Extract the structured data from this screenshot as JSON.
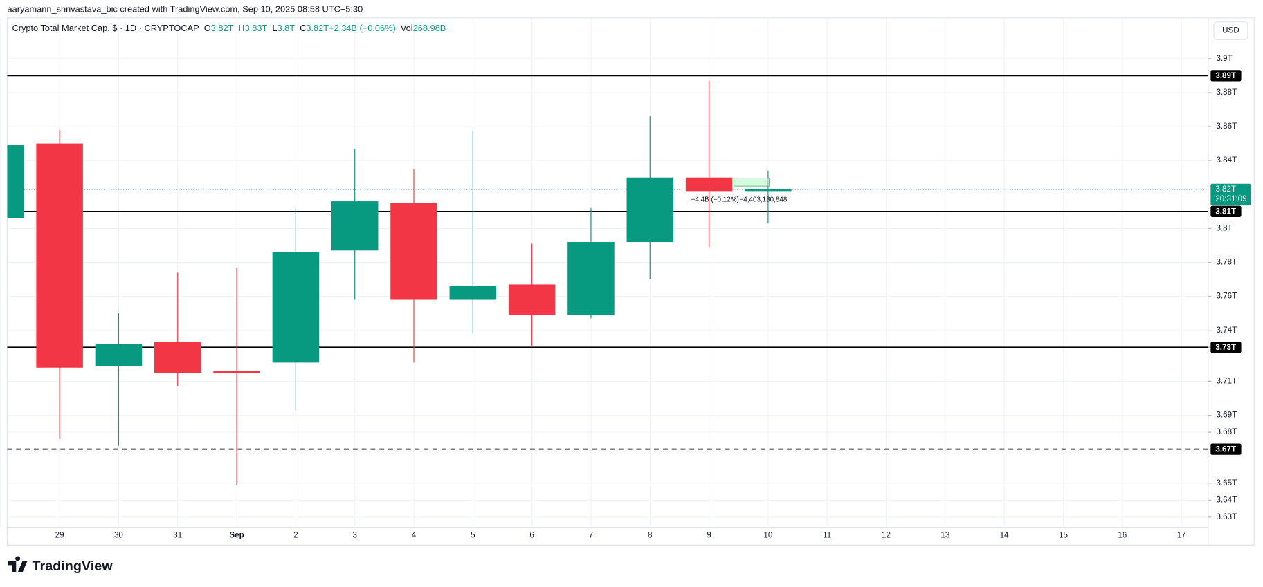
{
  "byline": "aaryamann_shrivastava_bic created with TradingView.com, Sep 10, 2025 08:58 UTC+5:30",
  "brand": "TradingView",
  "currency_button": "USD",
  "chart_data": {
    "type": "candlestick",
    "header": {
      "symbol": "Crypto Total Market Cap, $ · 1D · CRYPTOCAP",
      "items": [
        {
          "key": "O",
          "value": "3.82T"
        },
        {
          "key": "H",
          "value": "3.83T"
        },
        {
          "key": "L",
          "value": "3.8T"
        },
        {
          "key": "C",
          "value": "3.82T"
        },
        {
          "key": "",
          "value": "+2.34B (+0.06%)"
        },
        {
          "key": "Vol",
          "value": "268.98B"
        }
      ]
    },
    "categories": [
      null,
      "29",
      "30",
      "31",
      "Sep",
      "2",
      "3",
      "4",
      "5",
      "6",
      "7",
      "8",
      "9",
      "10",
      "11",
      "12",
      "13",
      "14",
      "15",
      "16",
      "17"
    ],
    "open": [
      3.806,
      3.85,
      3.719,
      3.733,
      3.716,
      3.721,
      3.787,
      3.815,
      3.758,
      3.767,
      3.749,
      3.792,
      3.83,
      3.822,
      null,
      null,
      null,
      null,
      null,
      null,
      null
    ],
    "high": [
      3.849,
      3.858,
      3.75,
      3.774,
      3.777,
      3.812,
      3.847,
      3.835,
      3.857,
      3.791,
      3.812,
      3.866,
      3.887,
      3.834,
      null,
      null,
      null,
      null,
      null,
      null,
      null
    ],
    "low": [
      3.806,
      3.676,
      3.672,
      3.707,
      3.649,
      3.693,
      3.758,
      3.721,
      3.738,
      3.731,
      3.747,
      3.77,
      3.789,
      3.803,
      null,
      null,
      null,
      null,
      null,
      null,
      null
    ],
    "close": [
      3.849,
      3.718,
      3.732,
      3.715,
      3.715,
      3.786,
      3.816,
      3.758,
      3.766,
      3.749,
      3.792,
      3.83,
      3.822,
      3.823,
      null,
      null,
      null,
      null,
      null,
      null,
      null
    ],
    "up_color": "#089981",
    "down_color": "#f23645",
    "ylim": [
      3.624,
      3.924
    ],
    "yticks": [
      {
        "value": 3.9,
        "label": "3.9T"
      },
      {
        "value": 3.88,
        "label": "3.88T"
      },
      {
        "value": 3.86,
        "label": "3.86T"
      },
      {
        "value": 3.84,
        "label": "3.84T"
      },
      {
        "value": 3.8,
        "label": "3.8T"
      },
      {
        "value": 3.78,
        "label": "3.78T"
      },
      {
        "value": 3.76,
        "label": "3.76T"
      },
      {
        "value": 3.74,
        "label": "3.74T"
      },
      {
        "value": 3.73,
        "label": "3.73T"
      },
      {
        "value": 3.71,
        "label": "3.71T"
      },
      {
        "value": 3.69,
        "label": "3.69T"
      },
      {
        "value": 3.68,
        "label": "3.68T"
      },
      {
        "value": 3.67,
        "label": "3.67T"
      },
      {
        "value": 3.65,
        "label": "3.65T"
      },
      {
        "value": 3.64,
        "label": "3.64T"
      },
      {
        "value": 3.63,
        "label": "3.63T"
      }
    ],
    "grid": true,
    "levels": [
      {
        "value": 3.89,
        "label": "3.89T",
        "style": "solid"
      },
      {
        "value": 3.81,
        "label": "3.81T",
        "style": "solid"
      },
      {
        "value": 3.73,
        "label": "3.73T",
        "style": "solid"
      },
      {
        "value": 3.67,
        "label": "3.67T",
        "style": "dashed"
      }
    ],
    "current_price": {
      "value": 3.823,
      "label": "3.82T",
      "countdown": "20:31:09"
    },
    "measure": {
      "change": "−4.4B (−0.12%)",
      "amount": "−4,403,130,848"
    }
  }
}
